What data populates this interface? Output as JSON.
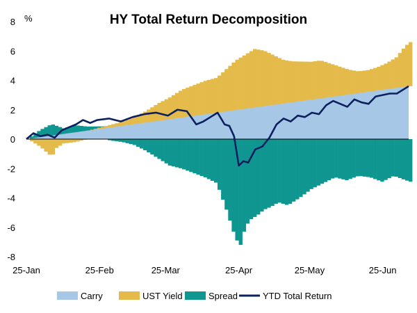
{
  "chart_data": {
    "type": "area",
    "title": "HY Total Return Decomposition",
    "ylabel": "%",
    "ylim": [
      -8,
      8
    ],
    "yticks": [
      8,
      6,
      4,
      2,
      0,
      -2,
      -4,
      -6,
      -8
    ],
    "x_start_label": "25-Jan",
    "x_end_day": 154,
    "xticks": [
      {
        "label": "25-Jan",
        "day": 0
      },
      {
        "label": "25-Feb",
        "day": 31
      },
      {
        "label": "25-Mar",
        "day": 59
      },
      {
        "label": "25-Apr",
        "day": 90
      },
      {
        "label": "25-May",
        "day": 120
      },
      {
        "label": "25-Jun",
        "day": 151
      }
    ],
    "colors": {
      "carry": "#a7c7e7",
      "ust_yield": "#e4bb4a",
      "spread": "#109690",
      "ytd_total_return": "#0c1f5e"
    },
    "series": [
      {
        "name": "Carry",
        "type": "area",
        "x": [
          0,
          162
        ],
        "values": [
          0.0,
          3.6
        ]
      },
      {
        "name": "UST Yield",
        "type": "stacked-bars",
        "x": [
          0,
          5,
          10,
          12,
          15,
          20,
          25,
          30,
          35,
          40,
          45,
          50,
          55,
          60,
          65,
          70,
          75,
          80,
          84,
          88,
          92,
          96,
          100,
          104,
          108,
          112,
          116,
          120,
          124,
          128,
          132,
          136,
          140,
          144,
          148,
          152,
          156,
          160,
          162
        ],
        "values": [
          0.0,
          -0.5,
          -1.2,
          -0.6,
          -0.3,
          -0.2,
          0.0,
          0.1,
          0.2,
          0.3,
          0.5,
          0.8,
          1.2,
          1.5,
          1.9,
          2.1,
          2.3,
          2.4,
          2.9,
          3.4,
          3.7,
          4.0,
          3.8,
          3.4,
          3.0,
          2.8,
          2.7,
          2.6,
          2.6,
          2.3,
          2.0,
          1.7,
          1.5,
          1.5,
          1.6,
          1.8,
          2.1,
          2.8,
          3.0
        ]
      },
      {
        "name": "Spread",
        "type": "stacked-bars",
        "x": [
          0,
          5,
          10,
          15,
          20,
          25,
          30,
          35,
          40,
          45,
          50,
          55,
          60,
          65,
          70,
          75,
          80,
          84,
          88,
          90,
          92,
          94,
          97,
          100,
          103,
          106,
          110,
          115,
          120,
          125,
          130,
          135,
          140,
          145,
          150,
          155,
          160,
          162
        ],
        "values": [
          0.0,
          0.5,
          0.8,
          0.4,
          0.5,
          0.3,
          0.1,
          -0.1,
          -0.2,
          -0.4,
          -0.8,
          -1.3,
          -1.8,
          -2.0,
          -2.3,
          -2.6,
          -3.0,
          -4.8,
          -6.8,
          -7.2,
          -6.0,
          -5.5,
          -5.2,
          -4.8,
          -4.6,
          -4.3,
          -4.5,
          -4.0,
          -3.4,
          -3.0,
          -2.6,
          -2.8,
          -2.5,
          -2.6,
          -2.9,
          -2.5,
          -2.8,
          -2.9
        ]
      },
      {
        "name": "YTD Total Return",
        "type": "line",
        "x": [
          0,
          3,
          6,
          9,
          12,
          15,
          18,
          21,
          24,
          27,
          30,
          35,
          40,
          45,
          50,
          55,
          60,
          64,
          68,
          72,
          75,
          78,
          81,
          84,
          86,
          88,
          90,
          92,
          94,
          97,
          100,
          103,
          106,
          109,
          112,
          115,
          118,
          121,
          124,
          127,
          130,
          133,
          136,
          139,
          142,
          145,
          148,
          151,
          154,
          157,
          160,
          162
        ],
        "values": [
          0.0,
          0.4,
          0.2,
          0.3,
          0.1,
          0.6,
          0.8,
          1.0,
          1.3,
          1.1,
          1.3,
          1.4,
          1.2,
          1.5,
          1.7,
          1.8,
          1.6,
          2.0,
          1.9,
          1.0,
          1.2,
          1.5,
          1.8,
          1.0,
          0.9,
          0.2,
          -1.8,
          -1.5,
          -1.6,
          -0.7,
          -0.5,
          0.1,
          1.0,
          1.4,
          1.2,
          1.6,
          1.5,
          1.8,
          1.7,
          2.3,
          2.6,
          2.4,
          2.2,
          2.7,
          2.5,
          2.4,
          2.9,
          3.0,
          3.1,
          3.1,
          3.4,
          3.6
        ]
      }
    ],
    "legend": {
      "position": "bottom",
      "entries": [
        {
          "label": "Carry",
          "kind": "box",
          "key": "carry"
        },
        {
          "label": "UST Yield",
          "kind": "box",
          "key": "ust_yield"
        },
        {
          "label": "Spread",
          "kind": "box",
          "key": "spread"
        },
        {
          "label": "YTD Total Return",
          "kind": "line",
          "key": "ytd_total_return"
        }
      ]
    }
  }
}
